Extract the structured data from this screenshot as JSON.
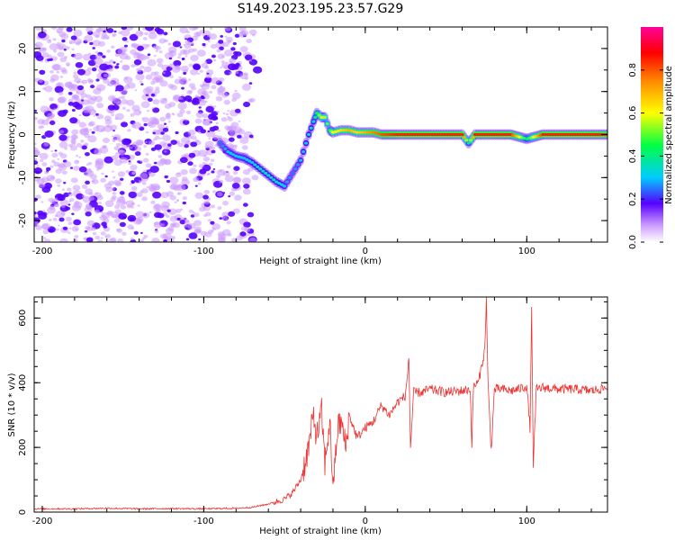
{
  "title": "S149.2023.195.23.57.G29",
  "colors": {
    "snr_line": "#ee3333",
    "spectrum_main": "#5500ff",
    "spectrum_light": "#cc99ff",
    "axis": "#000000"
  },
  "colorbar": {
    "label": "Normalized spectral amplitude",
    "range": [
      0,
      1
    ],
    "ticks": [
      "0.0",
      "0.2",
      "0.4",
      "0.6",
      "0.8"
    ],
    "tick_values": [
      0.0,
      0.2,
      0.4,
      0.6,
      0.8
    ],
    "colormap": "rainbow"
  },
  "chart_data": [
    {
      "type": "heatmap",
      "xlabel": "Height of straight line (km)",
      "ylabel": "Frequency (Hz)",
      "xlim": [
        -205,
        150
      ],
      "ylim": [
        -25,
        25
      ],
      "xticks": [
        -200,
        -100,
        0,
        100
      ],
      "xtick_labels": [
        "-200",
        "-100",
        "0",
        "100"
      ],
      "yticks": [
        -20,
        -10,
        0,
        10,
        20
      ],
      "ytick_labels": [
        "-20",
        "-10",
        "0",
        "10",
        "20"
      ],
      "ridge": {
        "x": [
          -90,
          -85,
          -80,
          -75,
          -70,
          -65,
          -60,
          -55,
          -50,
          -45,
          -40,
          -35,
          -32,
          -30,
          -27,
          -25,
          -22,
          -20,
          -15,
          -10,
          -5,
          0,
          5,
          10,
          20,
          40,
          60,
          64,
          68,
          80,
          90,
          100,
          110,
          130,
          150
        ],
        "y": [
          -2,
          -4,
          -5,
          -5.5,
          -6.5,
          -8,
          -9.5,
          -11,
          -12,
          -9,
          -6,
          0,
          3,
          5,
          4,
          4,
          1,
          0.5,
          1,
          1,
          0.5,
          0.5,
          0.5,
          0,
          0,
          0,
          0,
          -2,
          0,
          0,
          0,
          -1,
          0,
          0,
          0
        ],
        "amplitude": [
          0.25,
          0.3,
          0.3,
          0.3,
          0.32,
          0.35,
          0.35,
          0.35,
          0.3,
          0.25,
          0.3,
          0.35,
          0.35,
          0.45,
          0.6,
          0.55,
          0.45,
          0.6,
          0.65,
          0.7,
          0.65,
          0.7,
          0.75,
          0.8,
          0.85,
          0.85,
          0.85,
          0.4,
          0.85,
          0.85,
          0.85,
          0.4,
          0.85,
          0.85,
          0.85
        ]
      },
      "noise_region_x": [
        -205,
        -75
      ]
    },
    {
      "type": "line",
      "xlabel": "Height of straight line (km)",
      "ylabel": "SNR (10 * v/v)",
      "xlim": [
        -205,
        150
      ],
      "ylim": [
        0,
        665
      ],
      "xticks": [
        -200,
        -100,
        0,
        100
      ],
      "xtick_labels": [
        "-200",
        "-100",
        "0",
        "100"
      ],
      "yticks": [
        0,
        200,
        400,
        600
      ],
      "ytick_labels": [
        "0",
        "200",
        "400",
        "600"
      ],
      "series": [
        {
          "x": [
            -205,
            -180,
            -160,
            -140,
            -120,
            -100,
            -80,
            -70,
            -60,
            -50,
            -45,
            -40,
            -35,
            -32,
            -30,
            -27,
            -25,
            -22,
            -20,
            -17,
            -15,
            -12,
            -10,
            -5,
            0,
            5,
            10,
            15,
            20,
            25,
            27,
            28,
            30,
            35,
            40,
            50,
            60,
            65,
            66,
            67,
            70,
            74,
            75,
            76,
            78,
            80,
            85,
            90,
            95,
            100,
            102,
            103,
            104,
            106,
            110,
            120,
            130,
            140,
            150
          ],
          "y": [
            10,
            10,
            12,
            10,
            11,
            10,
            12,
            15,
            25,
            40,
            60,
            100,
            200,
            300,
            230,
            310,
            150,
            280,
            80,
            260,
            280,
            200,
            300,
            230,
            260,
            280,
            330,
            300,
            340,
            360,
            480,
            200,
            370,
            370,
            380,
            370,
            375,
            380,
            200,
            390,
            400,
            500,
            660,
            400,
            190,
            380,
            380,
            375,
            380,
            390,
            260,
            620,
            150,
            380,
            385,
            380,
            380,
            375,
            385
          ]
        }
      ]
    }
  ]
}
